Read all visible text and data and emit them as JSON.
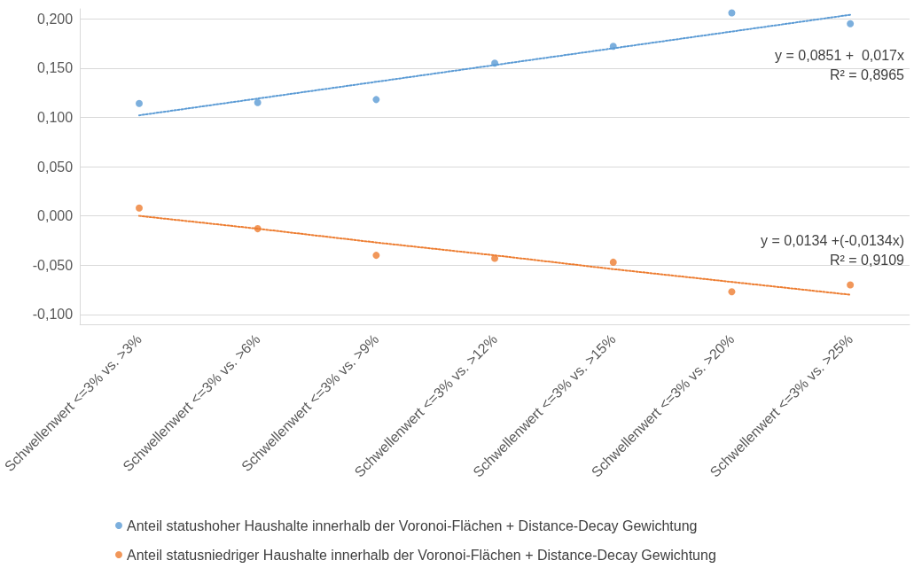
{
  "chart_data": {
    "type": "scatter",
    "categories": [
      "Schwellenwert <=3% vs. >3%",
      "Schwellenwert <=3% vs. >6%",
      "Schwellenwert <=3% vs. >9%",
      "Schwellenwert <=3% vs. >12%",
      "Schwellenwert <=3% vs. >15%",
      "Schwellenwert <=3% vs. >20%",
      "Schwellenwert <=3% vs. >25%"
    ],
    "series": [
      {
        "name": "Anteil statushoher Haushalte innerhalb der Voronoi-Flächen + Distance-Decay Gewichtung",
        "color": "#5b9bd5",
        "values": [
          0.114,
          0.115,
          0.118,
          0.155,
          0.172,
          0.206,
          0.195
        ]
      },
      {
        "name": "Anteil statusniedriger Haushalte innerhalb der Voronoi-Flächen + Distance-Decay Gewichtung",
        "color": "#ed7d31",
        "values": [
          0.008,
          -0.013,
          -0.04,
          -0.043,
          -0.047,
          -0.077,
          -0.07
        ]
      },
      {
        "type": "line",
        "color": "#5b9bd5",
        "line_style": "dotted",
        "marker": "none",
        "values": [
          0.102,
          0.119,
          0.136,
          0.153,
          0.17,
          0.187,
          0.204
        ]
      },
      {
        "type": "line",
        "color": "#ed7d31",
        "line_style": "dotted",
        "marker": "none",
        "values": [
          0.0,
          -0.013,
          -0.027,
          -0.04,
          -0.054,
          -0.067,
          -0.08
        ]
      }
    ],
    "ylim": [
      -0.11,
      0.21
    ],
    "yticks": [
      {
        "value": -0.1,
        "label": "-0,100"
      },
      {
        "value": -0.05,
        "label": "-0,050"
      },
      {
        "value": 0,
        "label": "0,000"
      },
      {
        "value": 0.05,
        "label": "0,050"
      },
      {
        "value": 0.1,
        "label": "0,100"
      },
      {
        "value": 0.15,
        "label": "0,150"
      },
      {
        "value": 0.2,
        "label": "0,200"
      }
    ],
    "grid": "y",
    "legend": "bottom",
    "marker": "circle",
    "annotations": [
      "y = 0,0851 +  0,017x\nR² = 0,8965",
      "y = 0,0134 +(-0,0134x)\nR² = 0,9109"
    ]
  }
}
